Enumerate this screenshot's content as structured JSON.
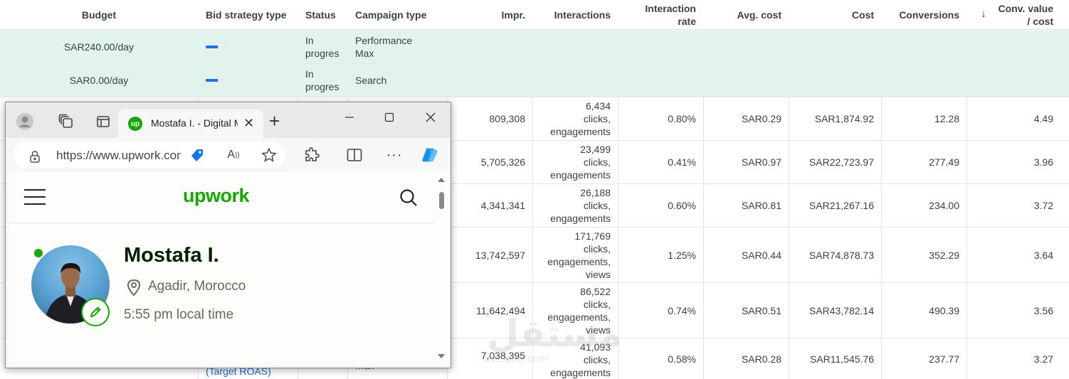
{
  "table": {
    "headers": {
      "budget": "Budget",
      "bid_strategy": "Bid strategy type",
      "status": "Status",
      "campaign_type": "Campaign type",
      "impr": "Impr.",
      "interactions": "Interactions",
      "interaction_rate_1": "Interaction",
      "interaction_rate_2": "rate",
      "avg_cost": "Avg. cost",
      "cost": "Cost",
      "conversions": "Conversions",
      "conv_value_1": "Conv. value",
      "conv_value_2": "/ cost",
      "sort_arrow": "↓"
    },
    "highlight_rows": [
      {
        "budget": "SAR240.00/day",
        "status_1": "In",
        "status_2": "progres",
        "type_1": "Performance",
        "type_2": "Max",
        "progress": 0.55
      },
      {
        "budget": "SAR0.00/day",
        "status_1": "In",
        "status_2": "progres",
        "type_1": "Search",
        "type_2": "",
        "progress": 0.55
      }
    ],
    "data_rows": [
      {
        "impr": "809,308",
        "int_1": "6,434",
        "int_2": "clicks,",
        "int_3": "engagements",
        "int_4": "",
        "rate": "0.80%",
        "avg": "SAR0.29",
        "cost": "SAR1,874.92",
        "conv": "12.28",
        "cv": "4.49"
      },
      {
        "impr": "5,705,326",
        "int_1": "23,499",
        "int_2": "clicks,",
        "int_3": "engagements",
        "int_4": "",
        "rate": "0.41%",
        "avg": "SAR0.97",
        "cost": "SAR22,723.97",
        "conv": "277.49",
        "cv": "3.96"
      },
      {
        "impr": "4,341,341",
        "int_1": "26,188",
        "int_2": "clicks,",
        "int_3": "engagements",
        "int_4": "",
        "rate": "0.60%",
        "avg": "SAR0.81",
        "cost": "SAR21,267.16",
        "conv": "234.00",
        "cv": "3.72"
      },
      {
        "impr": "13,742,597",
        "int_1": "171,769",
        "int_2": "clicks,",
        "int_3": "engagements,",
        "int_4": "views",
        "rate": "1.25%",
        "avg": "SAR0.44",
        "cost": "SAR74,878.73",
        "conv": "352.29",
        "cv": "3.64"
      },
      {
        "impr": "11,642,494",
        "int_1": "86,522",
        "int_2": "clicks,",
        "int_3": "engagements,",
        "int_4": "views",
        "rate": "0.74%",
        "avg": "SAR0.51",
        "cost": "SAR43,782.14",
        "conv": "490.39",
        "cv": "3.56"
      },
      {
        "impr": "7,038,395",
        "int_1": "41,093",
        "int_2": "clicks,",
        "int_3": "engagements",
        "int_4": "",
        "rate": "0.58%",
        "avg": "SAR0.28",
        "cost": "SAR11,545.76",
        "conv": "237.77",
        "cv": "3.27"
      }
    ],
    "partial_bid_label": "(Target ROAS)",
    "partial_type_label": "Max"
  },
  "browser": {
    "tab_title": "Mostafa I. - Digital Marketing",
    "favicon_text": "up",
    "url": "https://www.upwork.com/freelancers/",
    "new_tab": "+",
    "icons": [
      "profile-icon",
      "workspaces-icon",
      "tab-actions-icon",
      "lock-icon",
      "coupon-icon",
      "read-aloud-icon",
      "favorite-star-icon",
      "extensions-icon",
      "split-screen-icon",
      "more-icon",
      "copilot-icon"
    ]
  },
  "upwork": {
    "logo": "upwork",
    "profile_name": "Mostafa I.",
    "location": "Agadir, Morocco",
    "local_time": "5:55 pm local time",
    "accent": "#14a800"
  },
  "watermark": {
    "text": "مستقل",
    "sub": "mostaql.com"
  }
}
